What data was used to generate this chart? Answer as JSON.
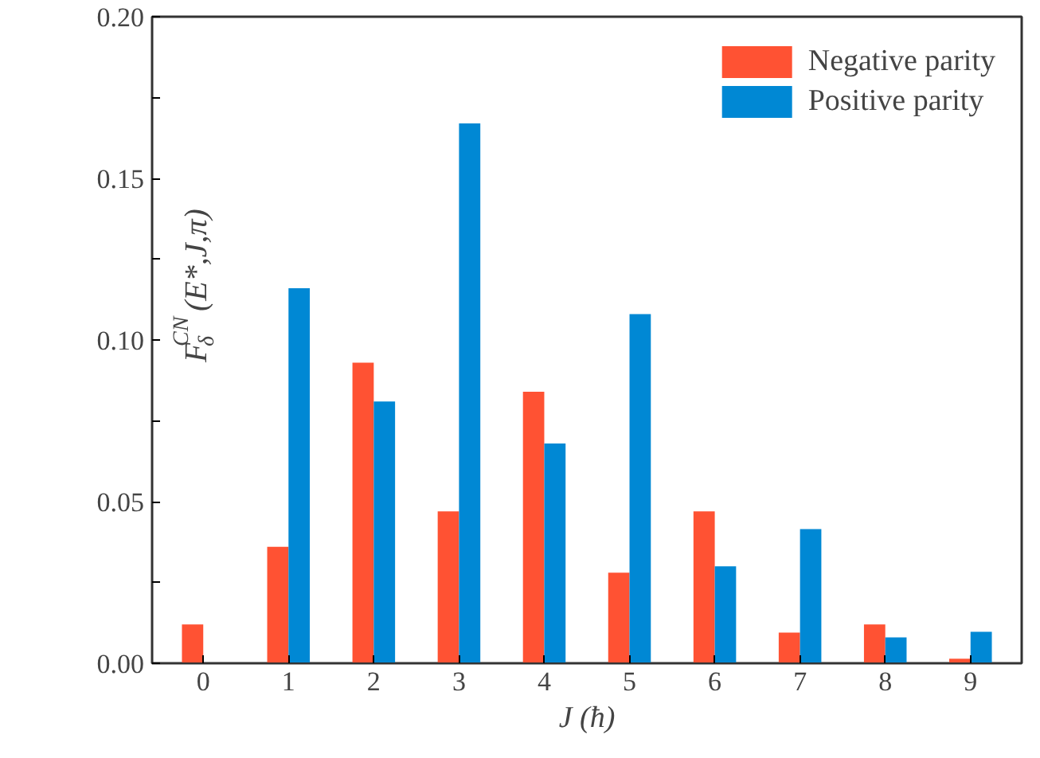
{
  "chart_data": {
    "type": "bar",
    "xlabel": "J (ħ)",
    "ylabel": "F$_{δ}$$^{CN}$ (E*,J,π)",
    "categories": [
      "0",
      "1",
      "2",
      "3",
      "4",
      "5",
      "6",
      "7",
      "8",
      "9"
    ],
    "series": [
      {
        "name": "Negative parity",
        "color": "#ff5233",
        "values": [
          0.012,
          0.036,
          0.093,
          0.047,
          0.084,
          0.028,
          0.047,
          0.0095,
          0.012,
          0.0014
        ]
      },
      {
        "name": "Positive parity",
        "color": "#0088d4",
        "values": [
          null,
          0.116,
          0.081,
          0.167,
          0.068,
          0.108,
          0.03,
          0.0415,
          0.008,
          0.0097
        ]
      }
    ],
    "ylim": [
      0,
      0.2
    ],
    "yticks": [
      {
        "value": 0,
        "label": "0.00"
      },
      {
        "value": 0.025,
        "label": null
      },
      {
        "value": 0.05,
        "label": "0.05"
      },
      {
        "value": 0.075,
        "label": null
      },
      {
        "value": 0.1,
        "label": "0.10"
      },
      {
        "value": 0.125,
        "label": null
      },
      {
        "value": 0.15,
        "label": "0.15"
      },
      {
        "value": 0.175,
        "label": null
      },
      {
        "value": 0.2,
        "label": "0.20"
      }
    ],
    "grid": false,
    "legend": "top right"
  }
}
